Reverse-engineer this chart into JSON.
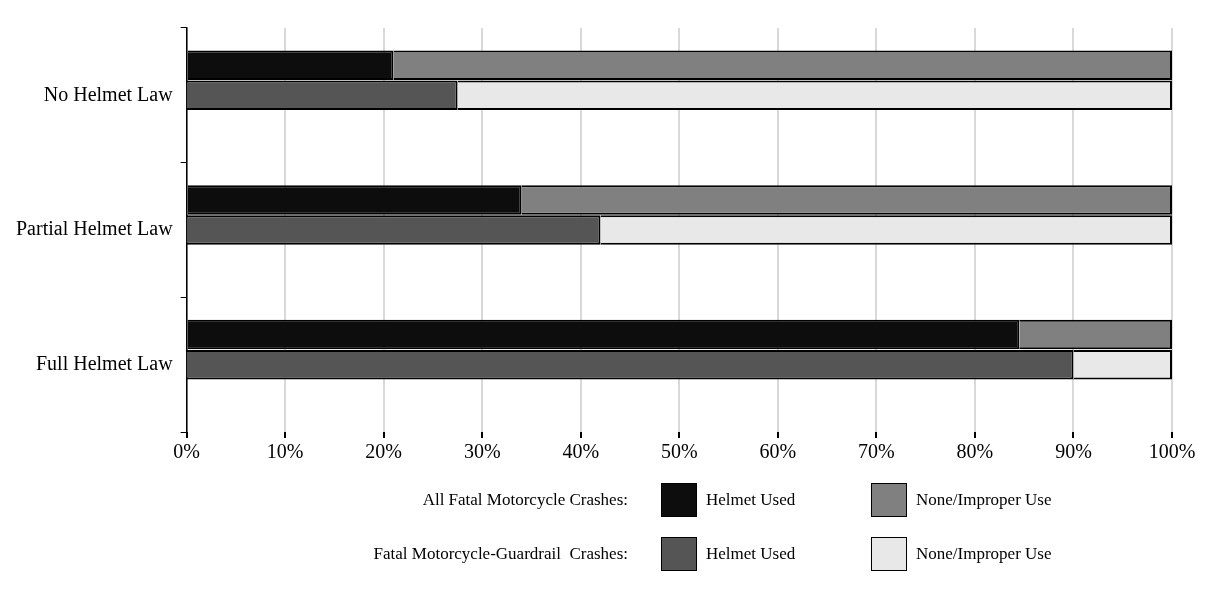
{
  "chart_data": [
    {
      "type": "bar",
      "orientation": "horizontal",
      "stacked": true,
      "legend_title": "All Fatal Motorcycle Crashes:",
      "categories": [
        "No Helmet Law",
        "Partial Helmet Law",
        "Full Helmet Law"
      ],
      "series": [
        {
          "name": "Helmet Used",
          "color": "#0d0d0d",
          "values": [
            21,
            34,
            84.5
          ]
        },
        {
          "name": "None/Improper Use",
          "color": "#808080",
          "values": [
            79,
            66,
            15.5
          ]
        }
      ],
      "xlim": [
        0,
        100
      ],
      "xticks": [
        {
          "value": 0,
          "label": "0%"
        },
        {
          "value": 10,
          "label": "10%"
        },
        {
          "value": 20,
          "label": "20%"
        },
        {
          "value": 30,
          "label": "30%"
        },
        {
          "value": 40,
          "label": "40%"
        },
        {
          "value": 50,
          "label": "50%"
        },
        {
          "value": 60,
          "label": "60%"
        },
        {
          "value": 70,
          "label": "70%"
        },
        {
          "value": 80,
          "label": "80%"
        },
        {
          "value": 90,
          "label": "90%"
        },
        {
          "value": 100,
          "label": "100%"
        }
      ],
      "grid": "x",
      "legend": "bottom"
    },
    {
      "type": "bar",
      "orientation": "horizontal",
      "stacked": true,
      "legend_title": "Fatal Motorcycle-Guardrail  Crashes:",
      "series": [
        {
          "name": "Helmet Used",
          "color": "#555555",
          "values": [
            27.5,
            42,
            90
          ]
        },
        {
          "name": "None/Improper Use",
          "color": "#e8e8e8",
          "values": [
            72.5,
            58,
            10
          ]
        }
      ],
      "xlim": [
        0,
        100
      ],
      "legend": "bottom"
    }
  ]
}
